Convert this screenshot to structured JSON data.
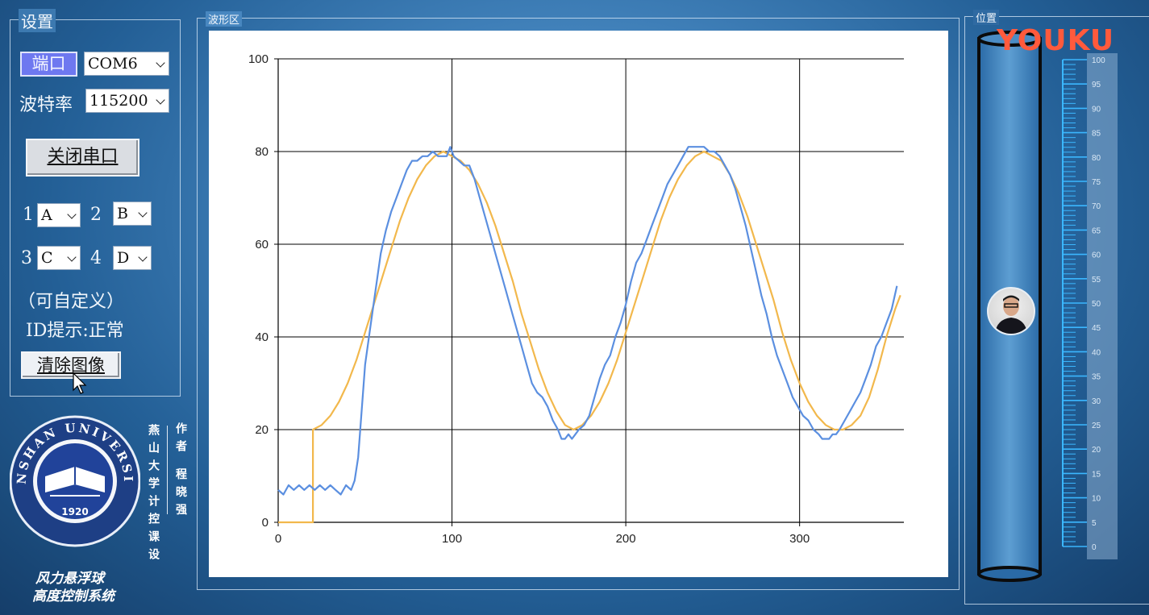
{
  "settings": {
    "title": "设置",
    "port_label": "端口",
    "port_value": "COM6",
    "baud_label": "波特率",
    "baud_value": "115200",
    "open_close_button": "关闭串口",
    "channels": [
      {
        "num": "1",
        "value": "A"
      },
      {
        "num": "2",
        "value": "B"
      },
      {
        "num": "3",
        "value": "C"
      },
      {
        "num": "4",
        "value": "D"
      }
    ],
    "custom_note": "（可自定义）",
    "id_hint_label": "ID提示:",
    "id_hint_value": "正常",
    "clear_button": "清除图像"
  },
  "branding": {
    "university_text": "YANSHAN UNIVERSITY",
    "year": "1920",
    "course_vertical": "燕山大学计控课设",
    "author_vertical": "作者 程晓强",
    "system_title_line1": "风力悬浮球",
    "system_title_line2": "高度控制系统",
    "watermark": "YOUKU"
  },
  "wave_panel": {
    "title": "波形区"
  },
  "position_panel": {
    "title": "位置",
    "scale_labels": [
      "100",
      "95",
      "90",
      "85",
      "80",
      "75",
      "70",
      "65",
      "60",
      "55",
      "50",
      "45",
      "40",
      "35",
      "30",
      "25",
      "20",
      "15",
      "10",
      "5",
      "0"
    ],
    "ball_position": 50
  },
  "colors": {
    "measured": "#5b8fe0",
    "setpoint": "#f2b84c"
  },
  "chart_data": {
    "type": "line",
    "xlim": [
      0,
      360
    ],
    "ylim": [
      0,
      100
    ],
    "x_ticks": [
      "0",
      "100",
      "200",
      "300"
    ],
    "y_ticks": [
      "0",
      "20",
      "40",
      "60",
      "80",
      "100"
    ],
    "grid": true,
    "series": [
      {
        "color_key": "setpoint",
        "points": [
          [
            0,
            0
          ],
          [
            19,
            0
          ],
          [
            20,
            0
          ],
          [
            20,
            20
          ],
          [
            25,
            21
          ],
          [
            30,
            23
          ],
          [
            35,
            26
          ],
          [
            40,
            30
          ],
          [
            45,
            35
          ],
          [
            50,
            41
          ],
          [
            55,
            47
          ],
          [
            60,
            53
          ],
          [
            65,
            59
          ],
          [
            70,
            65
          ],
          [
            75,
            70
          ],
          [
            80,
            74
          ],
          [
            85,
            77
          ],
          [
            90,
            79
          ],
          [
            95,
            80
          ],
          [
            100,
            79
          ],
          [
            105,
            78
          ],
          [
            110,
            76
          ],
          [
            115,
            73
          ],
          [
            120,
            69
          ],
          [
            125,
            64
          ],
          [
            130,
            58
          ],
          [
            135,
            52
          ],
          [
            140,
            45
          ],
          [
            145,
            39
          ],
          [
            150,
            33
          ],
          [
            155,
            28
          ],
          [
            160,
            24
          ],
          [
            165,
            21
          ],
          [
            170,
            20
          ],
          [
            175,
            21
          ],
          [
            180,
            23
          ],
          [
            185,
            26
          ],
          [
            190,
            30
          ],
          [
            195,
            35
          ],
          [
            200,
            41
          ],
          [
            205,
            47
          ],
          [
            210,
            53
          ],
          [
            215,
            59
          ],
          [
            220,
            65
          ],
          [
            225,
            70
          ],
          [
            230,
            74
          ],
          [
            235,
            77
          ],
          [
            240,
            79
          ],
          [
            245,
            80
          ],
          [
            250,
            79
          ],
          [
            255,
            78
          ],
          [
            260,
            75
          ],
          [
            265,
            71
          ],
          [
            270,
            66
          ],
          [
            275,
            60
          ],
          [
            280,
            54
          ],
          [
            285,
            48
          ],
          [
            290,
            41
          ],
          [
            295,
            35
          ],
          [
            300,
            30
          ],
          [
            305,
            26
          ],
          [
            310,
            23
          ],
          [
            315,
            21
          ],
          [
            320,
            20
          ],
          [
            325,
            20
          ],
          [
            330,
            21
          ],
          [
            335,
            23
          ],
          [
            340,
            27
          ],
          [
            345,
            33
          ],
          [
            350,
            40
          ],
          [
            355,
            46
          ],
          [
            358,
            49
          ]
        ]
      },
      {
        "color_key": "measured",
        "points": [
          [
            0,
            7
          ],
          [
            3,
            6
          ],
          [
            6,
            8
          ],
          [
            9,
            7
          ],
          [
            12,
            8
          ],
          [
            15,
            7
          ],
          [
            18,
            8
          ],
          [
            21,
            7
          ],
          [
            24,
            8
          ],
          [
            27,
            7
          ],
          [
            30,
            8
          ],
          [
            33,
            7
          ],
          [
            36,
            6
          ],
          [
            39,
            8
          ],
          [
            42,
            7
          ],
          [
            44,
            9
          ],
          [
            46,
            14
          ],
          [
            48,
            24
          ],
          [
            50,
            34
          ],
          [
            53,
            42
          ],
          [
            56,
            50
          ],
          [
            59,
            58
          ],
          [
            62,
            63
          ],
          [
            65,
            67
          ],
          [
            68,
            70
          ],
          [
            71,
            73
          ],
          [
            74,
            76
          ],
          [
            77,
            78
          ],
          [
            80,
            78
          ],
          [
            83,
            79
          ],
          [
            86,
            79
          ],
          [
            89,
            80
          ],
          [
            92,
            79
          ],
          [
            95,
            79
          ],
          [
            97,
            79
          ],
          [
            99,
            81
          ],
          [
            101,
            79
          ],
          [
            104,
            78
          ],
          [
            107,
            77
          ],
          [
            110,
            77
          ],
          [
            113,
            74
          ],
          [
            116,
            70
          ],
          [
            119,
            66
          ],
          [
            122,
            62
          ],
          [
            125,
            58
          ],
          [
            128,
            54
          ],
          [
            131,
            50
          ],
          [
            134,
            46
          ],
          [
            137,
            42
          ],
          [
            140,
            38
          ],
          [
            143,
            34
          ],
          [
            146,
            30
          ],
          [
            149,
            28
          ],
          [
            152,
            27
          ],
          [
            155,
            25
          ],
          [
            158,
            22
          ],
          [
            161,
            20
          ],
          [
            163,
            18
          ],
          [
            165,
            18
          ],
          [
            167,
            19
          ],
          [
            169,
            18
          ],
          [
            171,
            19
          ],
          [
            173,
            20
          ],
          [
            176,
            21
          ],
          [
            179,
            23
          ],
          [
            182,
            27
          ],
          [
            185,
            31
          ],
          [
            188,
            34
          ],
          [
            191,
            36
          ],
          [
            194,
            40
          ],
          [
            197,
            43
          ],
          [
            200,
            47
          ],
          [
            203,
            52
          ],
          [
            206,
            56
          ],
          [
            209,
            58
          ],
          [
            212,
            61
          ],
          [
            215,
            64
          ],
          [
            218,
            67
          ],
          [
            221,
            70
          ],
          [
            224,
            73
          ],
          [
            227,
            75
          ],
          [
            230,
            77
          ],
          [
            233,
            79
          ],
          [
            236,
            81
          ],
          [
            239,
            81
          ],
          [
            242,
            81
          ],
          [
            245,
            81
          ],
          [
            248,
            80
          ],
          [
            251,
            80
          ],
          [
            254,
            79
          ],
          [
            257,
            77
          ],
          [
            260,
            75
          ],
          [
            263,
            72
          ],
          [
            266,
            68
          ],
          [
            269,
            64
          ],
          [
            272,
            59
          ],
          [
            275,
            54
          ],
          [
            278,
            49
          ],
          [
            281,
            45
          ],
          [
            284,
            40
          ],
          [
            287,
            36
          ],
          [
            290,
            33
          ],
          [
            293,
            30
          ],
          [
            296,
            27
          ],
          [
            299,
            25
          ],
          [
            302,
            23
          ],
          [
            305,
            22
          ],
          [
            308,
            20
          ],
          [
            311,
            19
          ],
          [
            313,
            18
          ],
          [
            315,
            18
          ],
          [
            317,
            18
          ],
          [
            319,
            19
          ],
          [
            321,
            19
          ],
          [
            323,
            20
          ],
          [
            326,
            22
          ],
          [
            329,
            24
          ],
          [
            332,
            26
          ],
          [
            335,
            28
          ],
          [
            338,
            31
          ],
          [
            341,
            34
          ],
          [
            344,
            38
          ],
          [
            347,
            40
          ],
          [
            350,
            43
          ],
          [
            353,
            46
          ],
          [
            356,
            51
          ]
        ]
      }
    ]
  }
}
